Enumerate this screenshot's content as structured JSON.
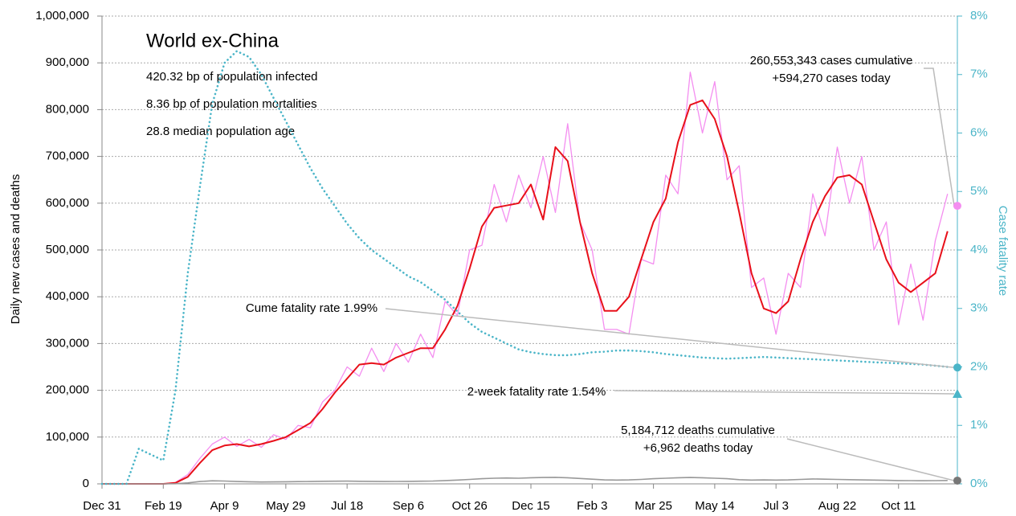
{
  "chart_data": {
    "type": "line",
    "title": "World ex-China",
    "subtitle_lines": [
      "420.32 bp of population infected",
      "8.36 bp of population mortalities",
      "28.8 median population age"
    ],
    "y_label": "Daily new cases and deaths",
    "y2_label": "Case fatality rate",
    "x": [
      0,
      10,
      20,
      30,
      40,
      50,
      60,
      70,
      80,
      90,
      100,
      110,
      120,
      130,
      140,
      150,
      160,
      170,
      180,
      190,
      200,
      210,
      220,
      230,
      240,
      250,
      260,
      270,
      280,
      290,
      300,
      310,
      320,
      330,
      340,
      350,
      360,
      370,
      380,
      390,
      400,
      410,
      420,
      430,
      440,
      450,
      460,
      470,
      480,
      490,
      500,
      510,
      520,
      530,
      540,
      550,
      560,
      570,
      580,
      590,
      600,
      610,
      620,
      630,
      640,
      650,
      660,
      670,
      680,
      690
    ],
    "xlim": [
      0,
      698
    ],
    "xticks": [
      {
        "value": 0,
        "label": "Dec 31"
      },
      {
        "value": 50,
        "label": "Feb 19"
      },
      {
        "value": 100,
        "label": "Apr 9"
      },
      {
        "value": 150,
        "label": "May 29"
      },
      {
        "value": 200,
        "label": "Jul 18"
      },
      {
        "value": 250,
        "label": "Sep 6"
      },
      {
        "value": 300,
        "label": "Oct 26"
      },
      {
        "value": 350,
        "label": "Dec 15"
      },
      {
        "value": 400,
        "label": "Feb 3"
      },
      {
        "value": 450,
        "label": "Mar 25"
      },
      {
        "value": 500,
        "label": "May 14"
      },
      {
        "value": 550,
        "label": "Jul 3"
      },
      {
        "value": 600,
        "label": "Aug 22"
      },
      {
        "value": 650,
        "label": "Oct 11"
      }
    ],
    "ylim": [
      0,
      1000000
    ],
    "yticks": [
      0,
      {
        "value": 100000,
        "label": "100,000"
      },
      {
        "value": 200000,
        "label": "200,000"
      },
      {
        "value": 300000,
        "label": "300,000"
      },
      {
        "value": 400000,
        "label": "400,000"
      },
      {
        "value": 500000,
        "label": "500,000"
      },
      {
        "value": 600000,
        "label": "600,000"
      },
      {
        "value": 700000,
        "label": "700,000"
      },
      {
        "value": 800000,
        "label": "800,000"
      },
      {
        "value": 900000,
        "label": "900,000"
      },
      {
        "value": 1000000,
        "label": "1,000,000"
      }
    ],
    "y2lim": [
      0,
      8
    ],
    "y2ticks": [
      {
        "value": 0,
        "label": "0%"
      },
      {
        "value": 1,
        "label": "1%"
      },
      {
        "value": 2,
        "label": "2%"
      },
      {
        "value": 3,
        "label": "3%"
      },
      {
        "value": 4,
        "label": "4%"
      },
      {
        "value": 5,
        "label": "5%"
      },
      {
        "value": 6,
        "label": "6%"
      },
      {
        "value": 7,
        "label": "7%"
      },
      {
        "value": 8,
        "label": "8%"
      }
    ],
    "grid": true,
    "series": [
      {
        "color": "#f48ef0",
        "width": 1.3,
        "dash": false,
        "values": [
          0,
          0,
          0,
          0,
          0,
          0,
          3000,
          20000,
          55000,
          85000,
          100000,
          80000,
          95000,
          78000,
          105000,
          95000,
          125000,
          120000,
          175000,
          200000,
          250000,
          230000,
          290000,
          240000,
          300000,
          260000,
          320000,
          270000,
          390000,
          360000,
          500000,
          510000,
          640000,
          560000,
          660000,
          590000,
          700000,
          580000,
          770000,
          560000,
          500000,
          330000,
          330000,
          320000,
          480000,
          470000,
          660000,
          620000,
          880000,
          750000,
          860000,
          650000,
          680000,
          420000,
          440000,
          320000,
          450000,
          420000,
          620000,
          530000,
          720000,
          600000,
          700000,
          500000,
          560000,
          340000,
          470000,
          350000,
          520000,
          620000
        ]
      },
      {
        "color": "#e8101a",
        "width": 2,
        "dash": false,
        "values": [
          0,
          0,
          0,
          0,
          0,
          0,
          2000,
          15000,
          45000,
          72000,
          82000,
          85000,
          80000,
          85000,
          92000,
          100000,
          115000,
          130000,
          160000,
          195000,
          225000,
          255000,
          258000,
          255000,
          270000,
          280000,
          290000,
          290000,
          330000,
          380000,
          460000,
          550000,
          590000,
          595000,
          600000,
          640000,
          565000,
          720000,
          690000,
          560000,
          450000,
          370000,
          370000,
          400000,
          480000,
          560000,
          610000,
          730000,
          810000,
          820000,
          780000,
          700000,
          580000,
          450000,
          375000,
          365000,
          390000,
          480000,
          560000,
          615000,
          655000,
          660000,
          640000,
          560000,
          480000,
          430000,
          410000,
          430000,
          450000,
          540000
        ]
      },
      {
        "color": "#999999",
        "width": 1.6,
        "dash": false,
        "values": [
          0,
          0,
          0,
          0,
          0,
          0,
          300,
          2000,
          5000,
          6500,
          6000,
          5000,
          4500,
          4000,
          4200,
          4500,
          4800,
          5000,
          5500,
          5600,
          5800,
          5500,
          5300,
          5000,
          5200,
          5400,
          5600,
          6000,
          7000,
          8000,
          9500,
          11000,
          12000,
          12500,
          12000,
          13000,
          13500,
          14000,
          13000,
          11500,
          10000,
          8500,
          8000,
          8500,
          9500,
          11000,
          12000,
          13000,
          13500,
          13000,
          12000,
          11000,
          9000,
          8000,
          8500,
          8000,
          8500,
          9500,
          10500,
          10000,
          9500,
          9000,
          8500,
          8000,
          7500,
          7000,
          6800,
          6700,
          6900,
          7200
        ]
      },
      {
        "color": "#4bb5c8",
        "width": 2.6,
        "dash": true,
        "axis": "y2",
        "values": [
          0,
          0,
          0,
          0.6,
          0.5,
          0.4,
          1.6,
          3.6,
          5.1,
          6.5,
          7.2,
          7.4,
          7.3,
          7.0,
          6.6,
          6.2,
          5.8,
          5.4,
          5.05,
          4.75,
          4.45,
          4.2,
          4.0,
          3.85,
          3.7,
          3.55,
          3.45,
          3.3,
          3.15,
          2.95,
          2.75,
          2.6,
          2.5,
          2.4,
          2.3,
          2.25,
          2.22,
          2.2,
          2.2,
          2.22,
          2.25,
          2.26,
          2.28,
          2.28,
          2.27,
          2.25,
          2.22,
          2.2,
          2.18,
          2.16,
          2.15,
          2.14,
          2.15,
          2.16,
          2.17,
          2.16,
          2.15,
          2.14,
          2.13,
          2.12,
          2.11,
          2.1,
          2.09,
          2.08,
          2.07,
          2.06,
          2.05,
          2.04,
          2.02,
          2.0
        ]
      }
    ],
    "annotations": [
      {
        "lines": [
          "260,553,343 cases cumulative",
          "+594,270 cases today"
        ],
        "value": 594270,
        "color": "#f48ef0",
        "marker": "circle"
      },
      {
        "lines": [
          "Cume fatality rate 1.99%"
        ],
        "value": 1.99,
        "axis": "y2",
        "color": "#4bb5c8",
        "marker": "circle"
      },
      {
        "lines": [
          "2-week fatality rate 1.54%"
        ],
        "value": 1.54,
        "axis": "y2",
        "color": "#4bb5c8",
        "marker": "triangle"
      },
      {
        "lines": [
          "5,184,712 deaths cumulative",
          "+6,962 deaths today"
        ],
        "value": 6962,
        "color": "#777777",
        "marker": "circle"
      }
    ]
  }
}
